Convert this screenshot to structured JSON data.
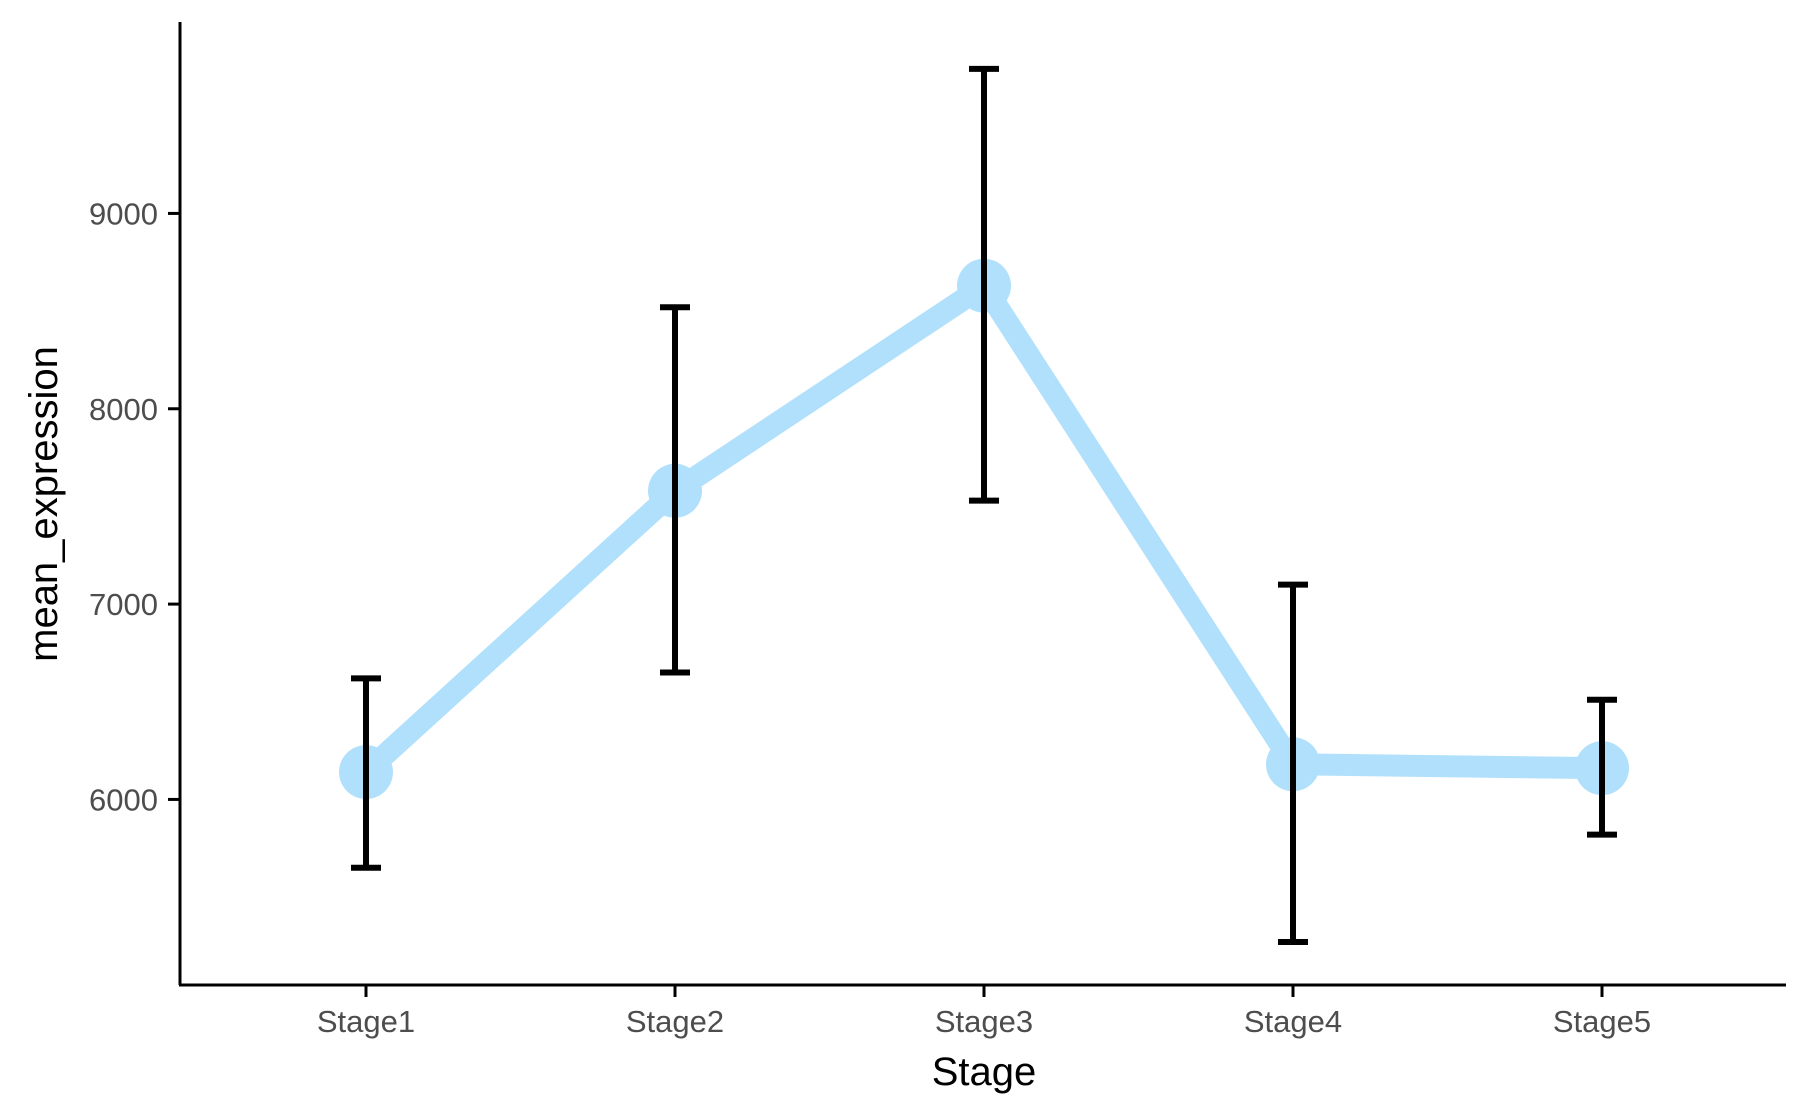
{
  "chart_data": {
    "type": "line",
    "xlabel": "Stage",
    "ylabel": "mean_expression",
    "categories": [
      "Stage1",
      "Stage2",
      "Stage3",
      "Stage4",
      "Stage5"
    ],
    "ylim": [
      5050,
      9980
    ],
    "yticks": [
      6000,
      7000,
      8000,
      9000
    ],
    "grid": false,
    "legend": "none",
    "series": [
      {
        "values": [
          6140,
          7580,
          8630,
          6180,
          6160
        ],
        "error_low": [
          5650,
          6650,
          7530,
          5270,
          5820
        ],
        "error_high": [
          6620,
          8520,
          9740,
          7100,
          6510
        ],
        "color": "#b0e0fc"
      }
    ],
    "errorbar_color": "#000000",
    "axis_color": "#000000"
  }
}
